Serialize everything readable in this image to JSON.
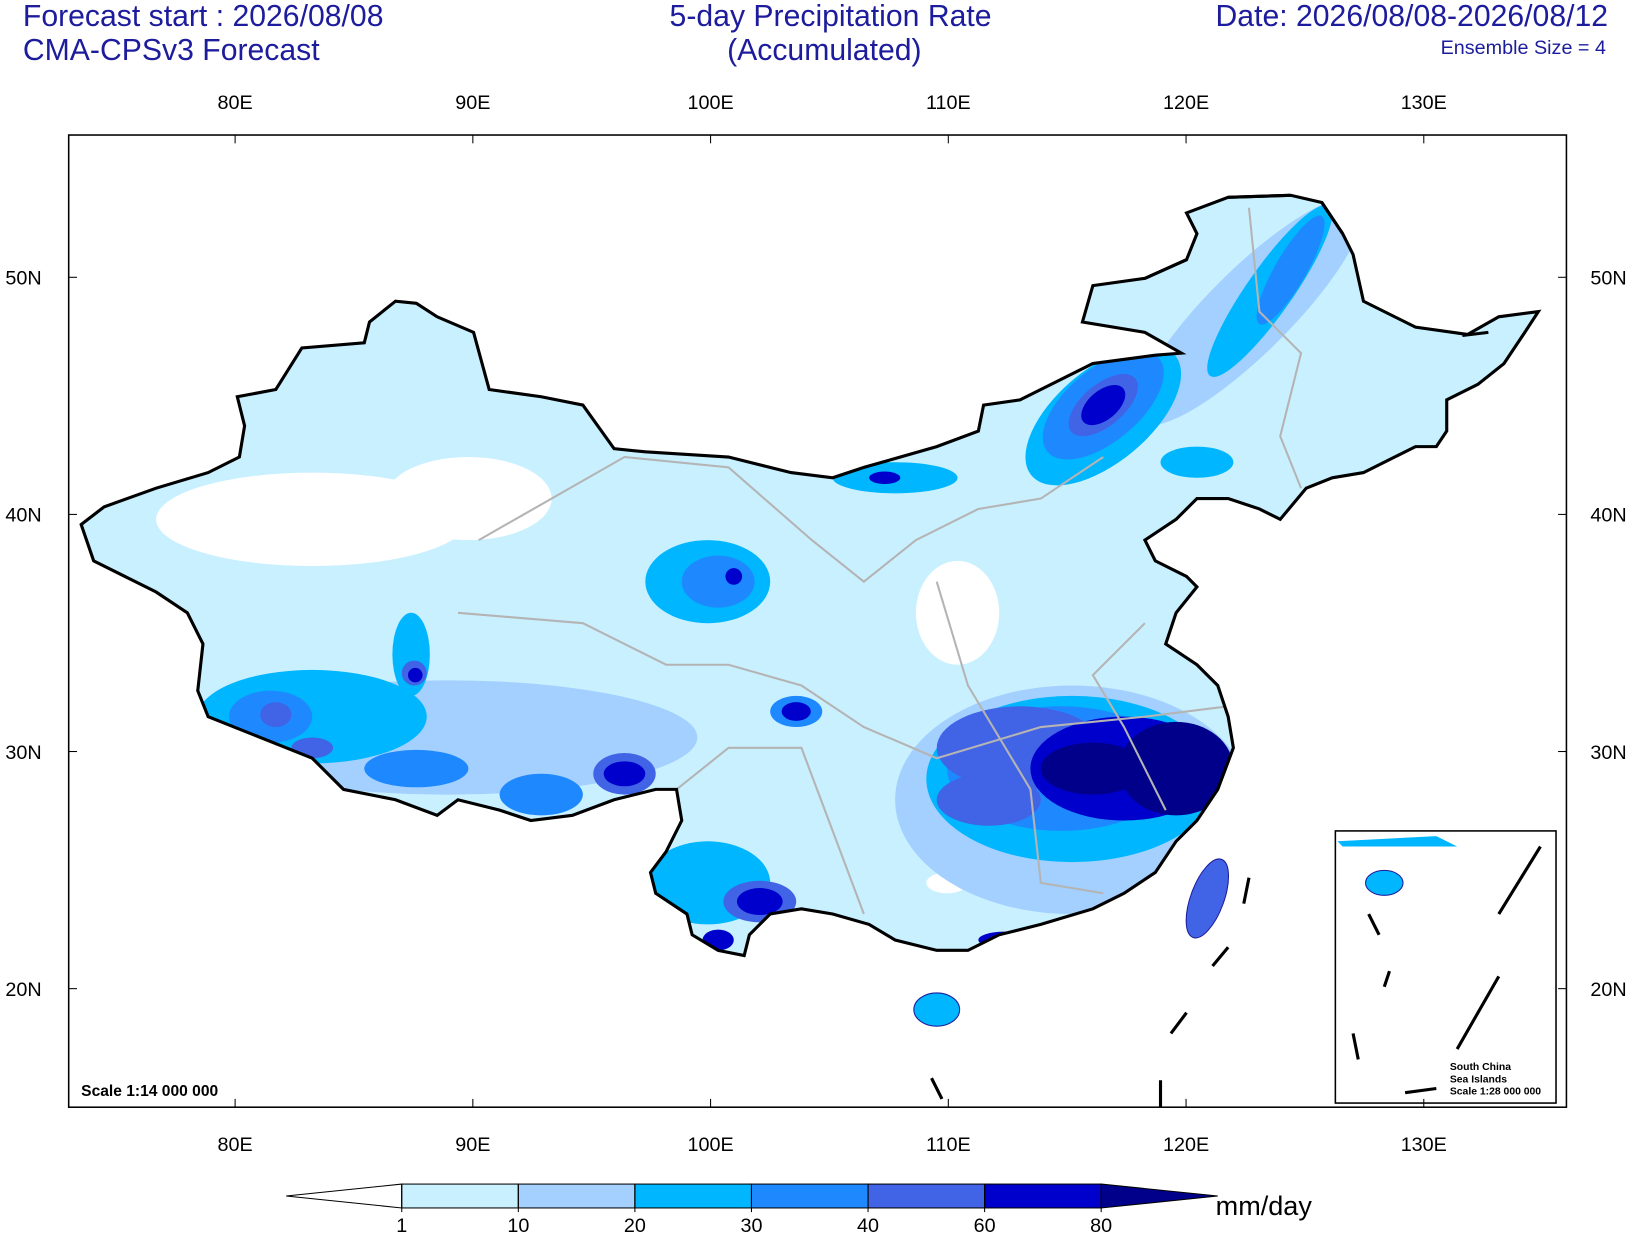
{
  "header": {
    "left_line1": "Forecast start : 2026/08/08",
    "left_line2": "CMA-CPSv3 Forecast",
    "title_line1": "5-day Precipitation Rate",
    "title_line2": "(Accumulated)",
    "date": "Date: 2026/08/08-2026/08/12",
    "ensemble": "Ensemble Size = 4"
  },
  "map": {
    "lonlim": [
      73,
      136
    ],
    "latlim": [
      15,
      56
    ],
    "lon_ticks": [
      {
        "value": 80,
        "label": "80E"
      },
      {
        "value": 90,
        "label": "90E"
      },
      {
        "value": 100,
        "label": "100E"
      },
      {
        "value": 110,
        "label": "110E"
      },
      {
        "value": 120,
        "label": "120E"
      },
      {
        "value": 130,
        "label": "130E"
      }
    ],
    "lat_ticks": [
      {
        "value": 20,
        "label": "20N"
      },
      {
        "value": 30,
        "label": "30N"
      },
      {
        "value": 40,
        "label": "40N"
      },
      {
        "value": 50,
        "label": "50N"
      }
    ],
    "scale_note": "Scale 1:14 000 000",
    "inset": {
      "line1": "South China",
      "line2": "Sea Islands",
      "line3": "Scale 1:28 000 000"
    }
  },
  "colorbar": {
    "levels": [
      1,
      10,
      20,
      30,
      40,
      60,
      80
    ],
    "colors": [
      "#ffffff",
      "#c9f0ff",
      "#a3d0ff",
      "#00b6ff",
      "#1e88ff",
      "#4163e6",
      "#0000cd",
      "#00008b"
    ],
    "unit": "mm/day"
  }
}
